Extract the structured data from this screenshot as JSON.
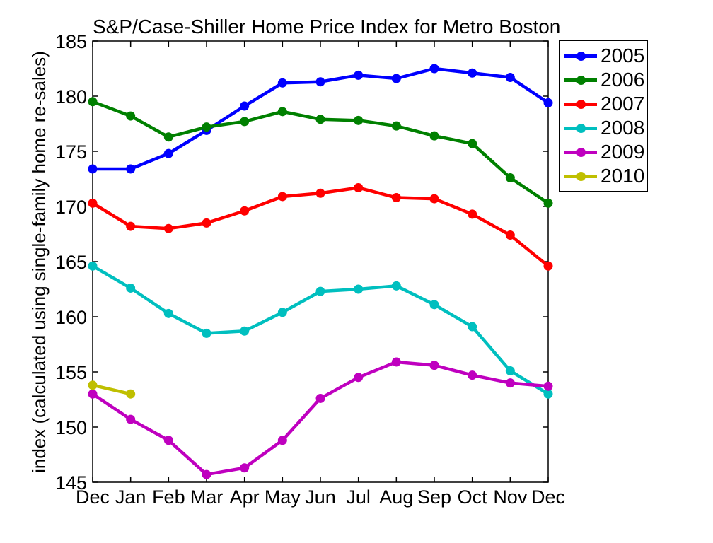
{
  "chart_data": {
    "type": "line",
    "title": "S&P/Case-Shiller Home Price Index for Metro Boston",
    "ylabel": "index (calculated using single-family home re-sales)",
    "xlabel": "",
    "categories": [
      "Dec",
      "Jan",
      "Feb",
      "Mar",
      "Apr",
      "May",
      "Jun",
      "Jul",
      "Aug",
      "Sep",
      "Oct",
      "Nov",
      "Dec"
    ],
    "ylim": [
      145,
      185
    ],
    "ytick_step": 5,
    "grid": false,
    "legend_position": "outside-right",
    "axis_color": "#000000",
    "marker": "circle",
    "series": [
      {
        "name": "2005",
        "color": "#0000FF",
        "values": [
          173.4,
          173.4,
          174.8,
          176.9,
          179.1,
          181.2,
          181.3,
          181.9,
          181.6,
          182.5,
          182.1,
          181.7,
          179.4
        ]
      },
      {
        "name": "2006",
        "color": "#008000",
        "values": [
          179.5,
          178.2,
          176.3,
          177.2,
          177.7,
          178.6,
          177.9,
          177.8,
          177.3,
          176.4,
          175.7,
          172.6,
          170.3
        ]
      },
      {
        "name": "2007",
        "color": "#FF0000",
        "values": [
          170.3,
          168.2,
          168.0,
          168.5,
          169.6,
          170.9,
          171.2,
          171.7,
          170.8,
          170.7,
          169.3,
          167.4,
          164.6
        ]
      },
      {
        "name": "2008",
        "color": "#00BFBF",
        "values": [
          164.6,
          162.6,
          160.3,
          158.5,
          158.7,
          160.4,
          162.3,
          162.5,
          162.8,
          161.1,
          159.1,
          155.1,
          153.0
        ]
      },
      {
        "name": "2009",
        "color": "#BF00BF",
        "values": [
          153.0,
          150.7,
          148.8,
          145.7,
          146.3,
          148.8,
          152.6,
          154.5,
          155.9,
          155.6,
          154.7,
          154.0,
          153.7
        ]
      },
      {
        "name": "2010",
        "color": "#BFBF00",
        "values": [
          153.8,
          153.0
        ]
      }
    ]
  }
}
